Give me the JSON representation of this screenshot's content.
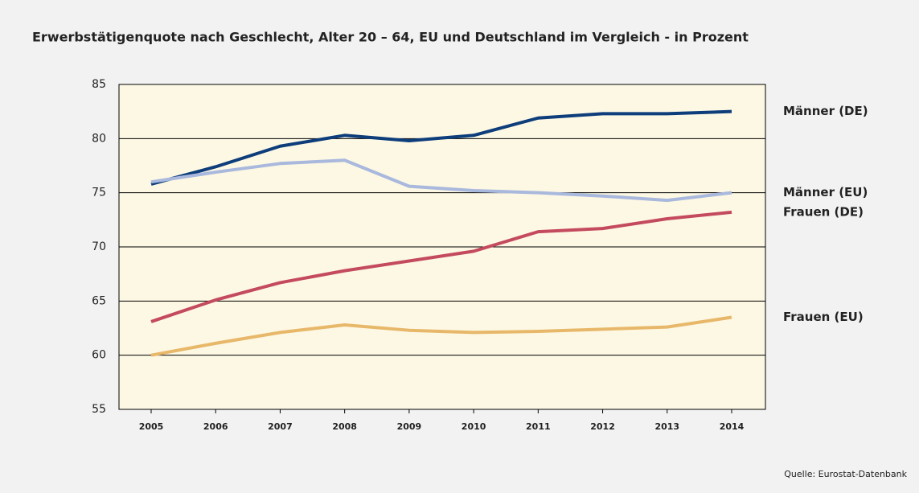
{
  "chart_data": {
    "type": "line",
    "title": "Erwerbstätigenquote nach Geschlecht, Alter 20 – 64, EU und Deutschland im Vergleich - in Prozent",
    "source": "Quelle: Eurostat-Datenbank",
    "categories": [
      "2005",
      "2006",
      "2007",
      "2008",
      "2009",
      "2010",
      "2011",
      "2012",
      "2013",
      "2014"
    ],
    "series": [
      {
        "name": "Männer (DE)",
        "color": "#0d3d7a",
        "values": [
          75.8,
          77.4,
          79.3,
          80.3,
          79.8,
          80.3,
          81.9,
          82.3,
          82.3,
          82.5
        ]
      },
      {
        "name": "Männer (EU)",
        "color": "#a9b8dd",
        "values": [
          76.0,
          76.9,
          77.7,
          78.0,
          75.6,
          75.2,
          75.0,
          74.7,
          74.3,
          75.0
        ]
      },
      {
        "name": "Frauen (DE)",
        "color": "#c44a5e",
        "values": [
          63.1,
          65.1,
          66.7,
          67.8,
          68.7,
          69.6,
          71.4,
          71.7,
          72.6,
          73.2
        ]
      },
      {
        "name": "Frauen (EU)",
        "color": "#e8b86a",
        "values": [
          60.0,
          61.1,
          62.1,
          62.8,
          62.3,
          62.1,
          62.2,
          62.4,
          62.6,
          63.5
        ]
      }
    ],
    "ylim": [
      55,
      85
    ],
    "yticks": [
      55,
      60,
      65,
      70,
      75,
      80,
      85
    ],
    "grid": true
  }
}
